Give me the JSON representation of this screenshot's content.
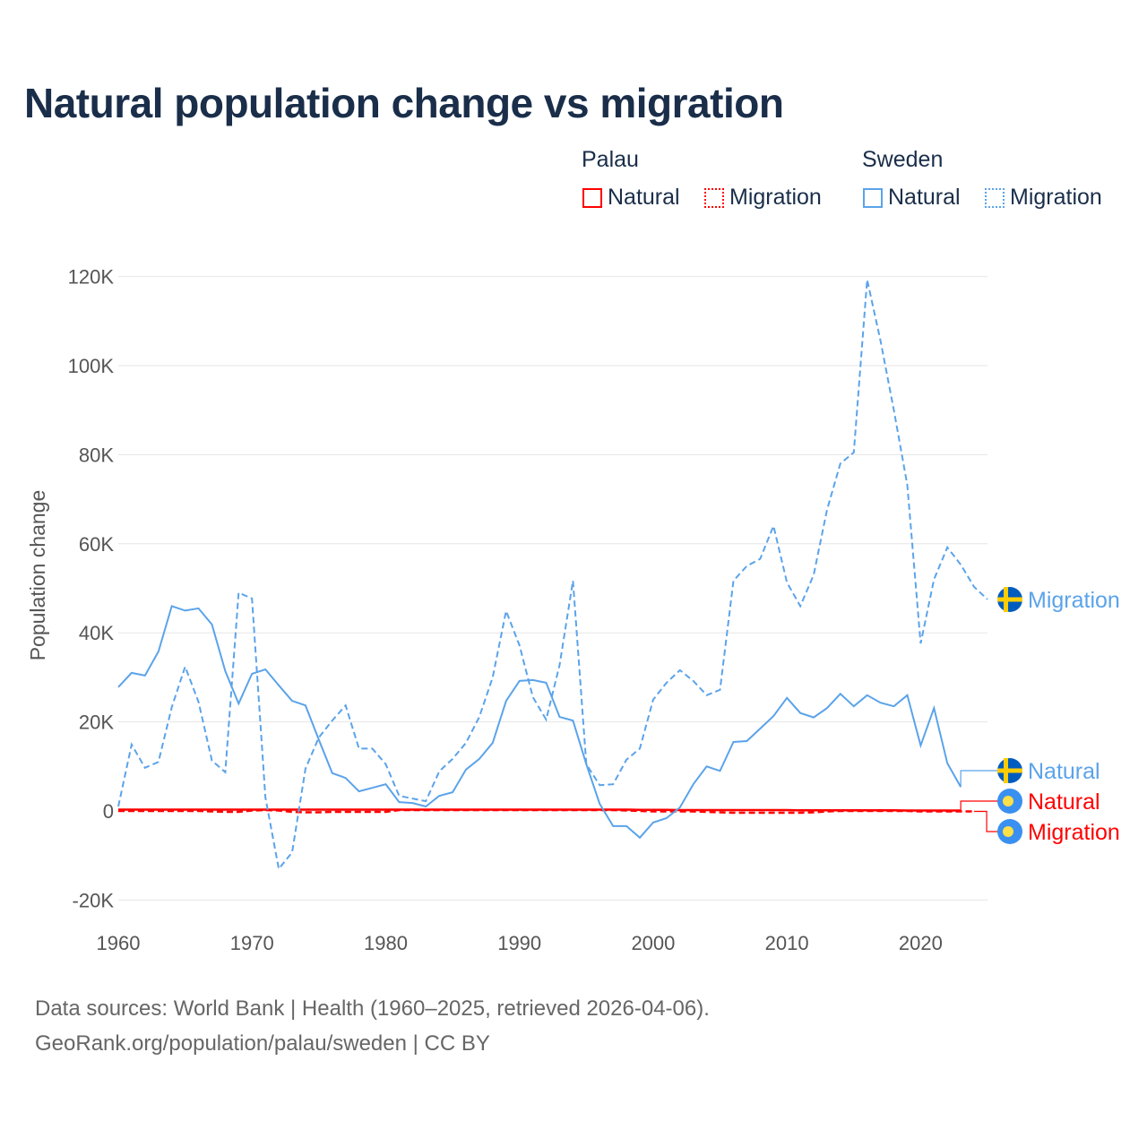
{
  "chart_data": {
    "type": "line",
    "title": "Natural population change vs migration",
    "xlabel": "",
    "ylabel": "Population change",
    "xlim": [
      1960,
      2025
    ],
    "ylim": [
      -20000,
      120000
    ],
    "x_ticks": [
      "1960",
      "1970",
      "1980",
      "1990",
      "2000",
      "2010",
      "2020"
    ],
    "y_ticks": [
      {
        "value": -20000,
        "label": "-20K"
      },
      {
        "value": 0,
        "label": "0"
      },
      {
        "value": 20000,
        "label": "20K"
      },
      {
        "value": 40000,
        "label": "40K"
      },
      {
        "value": 60000,
        "label": "60K"
      },
      {
        "value": 80000,
        "label": "80K"
      },
      {
        "value": 100000,
        "label": "100K"
      },
      {
        "value": 120000,
        "label": "120K"
      }
    ],
    "grid": true,
    "legend": {
      "placement": "top-right",
      "groups": [
        {
          "name": "Palau",
          "items": [
            "Natural",
            "Migration"
          ]
        },
        {
          "name": "Sweden",
          "items": [
            "Natural",
            "Migration"
          ]
        }
      ]
    },
    "series": [
      {
        "country": "Sweden",
        "name": "Migration",
        "color": "#5ba3ea",
        "dash": true,
        "start": 1960,
        "values": [
          1000,
          14900,
          9700,
          11000,
          23300,
          32400,
          24500,
          11300,
          8700,
          49000,
          47700,
          3000,
          -13000,
          -9300,
          9500,
          16500,
          20300,
          23700,
          14000,
          14000,
          10500,
          3400,
          2800,
          2200,
          8900,
          11700,
          15300,
          21100,
          30000,
          44900,
          37200,
          25600,
          20500,
          32800,
          51700,
          10500,
          5800,
          6000,
          11500,
          14000,
          25000,
          28800,
          31600,
          29200,
          26000,
          27200,
          51700,
          55000,
          56600,
          64000,
          51300,
          46000,
          53000,
          67600,
          78000,
          80500,
          119300,
          105600,
          90000,
          73200,
          37600,
          52000,
          59200,
          55300,
          50300,
          47500
        ]
      },
      {
        "country": "Sweden",
        "name": "Natural",
        "color": "#5ba3ea",
        "dash": false,
        "start": 1960,
        "values": [
          27800,
          31000,
          30400,
          35800,
          46000,
          45000,
          45500,
          41900,
          31400,
          24100,
          30800,
          31800,
          28200,
          24700,
          23700,
          16000,
          8500,
          7400,
          4400,
          5200,
          6000,
          2000,
          1800,
          1000,
          3400,
          4200,
          9300,
          11700,
          15300,
          24700,
          29200,
          29400,
          28800,
          21100,
          20300,
          10500,
          1600,
          -3400,
          -3400,
          -6000,
          -2600,
          -1600,
          800,
          6000,
          10000,
          9000,
          15500,
          15700,
          18500,
          21300,
          25400,
          22000,
          21000,
          23100,
          26300,
          23500,
          26000,
          24300,
          23500,
          26000,
          14700,
          23100,
          10700,
          5400
        ]
      },
      {
        "country": "Palau",
        "name": "Natural",
        "color": "#ff0000",
        "dash": false,
        "start": 1960,
        "values": [
          300,
          300,
          300,
          300,
          300,
          300,
          300,
          300,
          300,
          300,
          300,
          300,
          300,
          300,
          300,
          300,
          300,
          300,
          300,
          300,
          300,
          300,
          300,
          300,
          300,
          300,
          300,
          300,
          300,
          300,
          300,
          300,
          300,
          300,
          300,
          300,
          300,
          300,
          300,
          250,
          250,
          250,
          200,
          200,
          200,
          200,
          200,
          200,
          200,
          200,
          200,
          150,
          150,
          150,
          150,
          150,
          150,
          150,
          150,
          100,
          100,
          100,
          100,
          100
        ]
      },
      {
        "country": "Palau",
        "name": "Migration",
        "color": "#ff0000",
        "dash": true,
        "start": 1960,
        "values": [
          0,
          0,
          0,
          0,
          0,
          0,
          0,
          -100,
          -200,
          -200,
          100,
          200,
          100,
          -200,
          -300,
          -300,
          -200,
          -200,
          -200,
          -200,
          -200,
          200,
          200,
          200,
          200,
          200,
          200,
          200,
          200,
          200,
          200,
          200,
          200,
          200,
          200,
          200,
          200,
          200,
          100,
          0,
          -100,
          -100,
          -100,
          -100,
          -200,
          -300,
          -400,
          -400,
          -400,
          -400,
          -400,
          -400,
          -300,
          -100,
          0,
          0,
          0,
          0,
          0,
          0,
          -100,
          -100,
          -100,
          -100,
          -100
        ]
      }
    ],
    "end_labels": [
      {
        "text": "Migration",
        "country": "Sweden"
      },
      {
        "text": "Natural",
        "country": "Sweden"
      },
      {
        "text": "Natural",
        "country": "Palau"
      },
      {
        "text": "Migration",
        "country": "Palau"
      }
    ]
  },
  "footer": {
    "line1": "Data sources: World Bank | Health (1960–2025, retrieved 2026-04-06).",
    "line2": "GeoRank.org/population/palau/sweden | CC BY"
  }
}
